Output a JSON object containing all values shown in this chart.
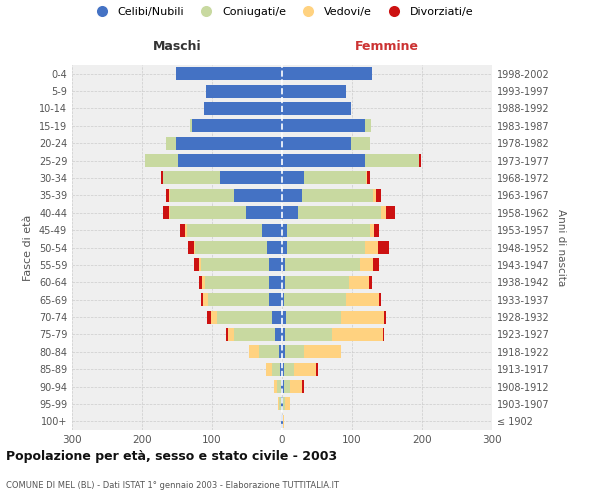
{
  "age_groups": [
    "100+",
    "95-99",
    "90-94",
    "85-89",
    "80-84",
    "75-79",
    "70-74",
    "65-69",
    "60-64",
    "55-59",
    "50-54",
    "45-49",
    "40-44",
    "35-39",
    "30-34",
    "25-29",
    "20-24",
    "15-19",
    "10-14",
    "5-9",
    "0-4"
  ],
  "birth_years": [
    "≤ 1902",
    "1903-1907",
    "1908-1912",
    "1913-1917",
    "1918-1922",
    "1923-1927",
    "1928-1932",
    "1933-1937",
    "1938-1942",
    "1943-1947",
    "1948-1952",
    "1953-1957",
    "1958-1962",
    "1963-1967",
    "1968-1972",
    "1973-1977",
    "1978-1982",
    "1983-1987",
    "1988-1992",
    "1993-1997",
    "1998-2002"
  ],
  "maschi": {
    "celibi": [
      1,
      2,
      2,
      3,
      5,
      10,
      15,
      18,
      18,
      18,
      22,
      28,
      52,
      68,
      88,
      148,
      152,
      128,
      112,
      108,
      152
    ],
    "coniugati": [
      0,
      2,
      5,
      12,
      28,
      58,
      78,
      88,
      92,
      98,
      102,
      108,
      108,
      92,
      82,
      48,
      14,
      3,
      0,
      0,
      0
    ],
    "vedovi": [
      0,
      2,
      5,
      8,
      14,
      9,
      9,
      7,
      4,
      2,
      2,
      2,
      2,
      2,
      0,
      0,
      0,
      0,
      0,
      0,
      0
    ],
    "divorziati": [
      0,
      0,
      0,
      0,
      0,
      3,
      5,
      3,
      4,
      8,
      8,
      8,
      8,
      4,
      3,
      0,
      0,
      0,
      0,
      0,
      0
    ]
  },
  "femmine": {
    "nubili": [
      1,
      2,
      3,
      3,
      4,
      4,
      6,
      3,
      4,
      4,
      7,
      7,
      23,
      28,
      32,
      118,
      98,
      118,
      98,
      92,
      128
    ],
    "coniugate": [
      0,
      2,
      8,
      14,
      28,
      68,
      78,
      88,
      92,
      108,
      112,
      118,
      118,
      102,
      88,
      78,
      28,
      9,
      0,
      0,
      0
    ],
    "vedove": [
      2,
      8,
      18,
      32,
      52,
      72,
      62,
      48,
      28,
      18,
      18,
      7,
      7,
      4,
      2,
      0,
      0,
      0,
      0,
      0,
      0
    ],
    "divorziate": [
      0,
      0,
      3,
      2,
      0,
      2,
      2,
      2,
      4,
      9,
      16,
      7,
      14,
      7,
      4,
      2,
      0,
      0,
      0,
      0,
      0
    ]
  },
  "colors": {
    "celibi_nubili": "#4472c4",
    "coniugati": "#c8d9a0",
    "vedovi": "#ffd280",
    "divorziati": "#cc1111"
  },
  "title": "Popolazione per età, sesso e stato civile - 2003",
  "subtitle": "COMUNE DI MEL (BL) - Dati ISTAT 1° gennaio 2003 - Elaborazione TUTTITALIA.IT",
  "xlabel_left": "Maschi",
  "xlabel_right": "Femmine",
  "ylabel_left": "Fasce di età",
  "ylabel_right": "Anni di nascita",
  "xlim": 300,
  "background_color": "#ffffff",
  "grid_color": "#cccccc",
  "legend_labels": [
    "Celibi/Nubili",
    "Coniugati/e",
    "Vedovi/e",
    "Divorziati/e"
  ]
}
